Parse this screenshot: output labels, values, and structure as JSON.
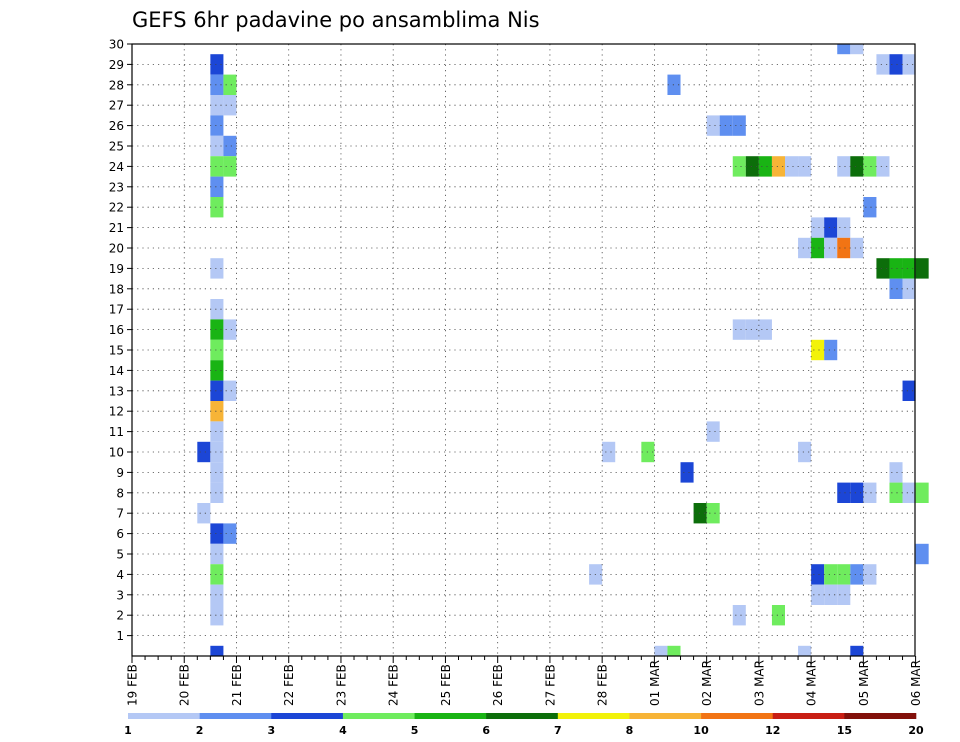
{
  "chart_data": {
    "type": "heatmap",
    "title": "GEFS 6hr padavine po ansamblima Nis",
    "xlabel": "",
    "ylabel": "",
    "x_tick_labels": [
      "19 FEB",
      "20 FEB",
      "21 FEB",
      "22 FEB",
      "23 FEB",
      "24 FEB",
      "25 FEB",
      "26 FEB",
      "27 FEB",
      "28 FEB",
      "01 MAR",
      "02 MAR",
      "03 MAR",
      "04 MAR",
      "05 MAR",
      "06 MAR"
    ],
    "y_tick_labels": [
      "1",
      "2",
      "3",
      "4",
      "5",
      "6",
      "7",
      "8",
      "9",
      "10",
      "11",
      "12",
      "13",
      "14",
      "15",
      "16",
      "17",
      "18",
      "19",
      "20",
      "21",
      "22",
      "23",
      "24",
      "25",
      "26",
      "27",
      "28",
      "29",
      "30"
    ],
    "ylim": [
      0,
      30
    ],
    "x_step": "6 hours",
    "grid": true,
    "colorbar": {
      "levels": [
        "1",
        "2",
        "3",
        "4",
        "5",
        "6",
        "7",
        "8",
        "10",
        "12",
        "15",
        "20"
      ],
      "colors": [
        "#b4c8f5",
        "#5f8ff0",
        "#1c46d6",
        "#6fec5e",
        "#19b414",
        "#0c6e0a",
        "#f2f20a",
        "#f7b437",
        "#f27414",
        "#c81e14",
        "#82100a"
      ]
    },
    "cells": [
      {
        "t": 6,
        "m": 29,
        "c": 3
      },
      {
        "t": 6,
        "m": 28,
        "c": 2
      },
      {
        "t": 7,
        "m": 28,
        "c": 4
      },
      {
        "t": 6,
        "m": 27,
        "c": 1
      },
      {
        "t": 7,
        "m": 27,
        "c": 1
      },
      {
        "t": 6,
        "m": 26,
        "c": 2
      },
      {
        "t": 6,
        "m": 25,
        "c": 1
      },
      {
        "t": 7,
        "m": 25,
        "c": 2
      },
      {
        "t": 6,
        "m": 24,
        "c": 4
      },
      {
        "t": 7,
        "m": 24,
        "c": 4
      },
      {
        "t": 6,
        "m": 23,
        "c": 2
      },
      {
        "t": 6,
        "m": 22,
        "c": 4
      },
      {
        "t": 6,
        "m": 19,
        "c": 1
      },
      {
        "t": 6,
        "m": 17,
        "c": 1
      },
      {
        "t": 6,
        "m": 16,
        "c": 5
      },
      {
        "t": 7,
        "m": 16,
        "c": 1
      },
      {
        "t": 6,
        "m": 15,
        "c": 4
      },
      {
        "t": 6,
        "m": 14,
        "c": 5
      },
      {
        "t": 6,
        "m": 13,
        "c": 3
      },
      {
        "t": 7,
        "m": 13,
        "c": 1
      },
      {
        "t": 6,
        "m": 12,
        "c": 8
      },
      {
        "t": 6,
        "m": 11,
        "c": 1
      },
      {
        "t": 5,
        "m": 10,
        "c": 3
      },
      {
        "t": 6,
        "m": 10,
        "c": 1
      },
      {
        "t": 6,
        "m": 9,
        "c": 1
      },
      {
        "t": 6,
        "m": 8,
        "c": 1
      },
      {
        "t": 5,
        "m": 7,
        "c": 1
      },
      {
        "t": 6,
        "m": 6,
        "c": 3
      },
      {
        "t": 7,
        "m": 6,
        "c": 2
      },
      {
        "t": 6,
        "m": 5,
        "c": 1
      },
      {
        "t": 6,
        "m": 4,
        "c": 4
      },
      {
        "t": 6,
        "m": 3,
        "c": 1
      },
      {
        "t": 6,
        "m": 2,
        "c": 1
      },
      {
        "t": 6,
        "m": 0,
        "c": 3
      },
      {
        "t": 36,
        "m": 10,
        "c": 1
      },
      {
        "t": 35,
        "m": 4,
        "c": 1
      },
      {
        "t": 39,
        "m": 10,
        "c": 4
      },
      {
        "t": 40,
        "m": 0,
        "c": 1
      },
      {
        "t": 41,
        "m": 0,
        "c": 4
      },
      {
        "t": 41,
        "m": 28,
        "c": 2
      },
      {
        "t": 42,
        "m": 9,
        "c": 3
      },
      {
        "t": 43,
        "m": 7,
        "c": 6
      },
      {
        "t": 44,
        "m": 7,
        "c": 4
      },
      {
        "t": 44,
        "m": 26,
        "c": 1
      },
      {
        "t": 45,
        "m": 26,
        "c": 2
      },
      {
        "t": 46,
        "m": 26,
        "c": 2
      },
      {
        "t": 44,
        "m": 11,
        "c": 1
      },
      {
        "t": 46,
        "m": 24,
        "c": 4
      },
      {
        "t": 47,
        "m": 24,
        "c": 6
      },
      {
        "t": 48,
        "m": 24,
        "c": 5
      },
      {
        "t": 49,
        "m": 24,
        "c": 8
      },
      {
        "t": 50,
        "m": 24,
        "c": 1
      },
      {
        "t": 51,
        "m": 24,
        "c": 1
      },
      {
        "t": 46,
        "m": 16,
        "c": 1
      },
      {
        "t": 47,
        "m": 16,
        "c": 1
      },
      {
        "t": 48,
        "m": 16,
        "c": 1
      },
      {
        "t": 46,
        "m": 2,
        "c": 1
      },
      {
        "t": 49,
        "m": 2,
        "c": 4
      },
      {
        "t": 51,
        "m": 10,
        "c": 1
      },
      {
        "t": 51,
        "m": 20,
        "c": 1
      },
      {
        "t": 51,
        "m": 0,
        "c": 1
      },
      {
        "t": 52,
        "m": 21,
        "c": 1
      },
      {
        "t": 53,
        "m": 21,
        "c": 3
      },
      {
        "t": 54,
        "m": 21,
        "c": 1
      },
      {
        "t": 52,
        "m": 20,
        "c": 5
      },
      {
        "t": 53,
        "m": 20,
        "c": 1
      },
      {
        "t": 54,
        "m": 20,
        "c": 9
      },
      {
        "t": 55,
        "m": 20,
        "c": 1
      },
      {
        "t": 52,
        "m": 15,
        "c": 7
      },
      {
        "t": 53,
        "m": 15,
        "c": 2
      },
      {
        "t": 52,
        "m": 4,
        "c": 3
      },
      {
        "t": 53,
        "m": 4,
        "c": 4
      },
      {
        "t": 54,
        "m": 4,
        "c": 4
      },
      {
        "t": 55,
        "m": 4,
        "c": 2
      },
      {
        "t": 56,
        "m": 4,
        "c": 1
      },
      {
        "t": 52,
        "m": 3,
        "c": 1
      },
      {
        "t": 53,
        "m": 3,
        "c": 1
      },
      {
        "t": 54,
        "m": 3,
        "c": 1
      },
      {
        "t": 54,
        "m": 24,
        "c": 1
      },
      {
        "t": 55,
        "m": 24,
        "c": 6
      },
      {
        "t": 56,
        "m": 24,
        "c": 4
      },
      {
        "t": 57,
        "m": 24,
        "c": 1
      },
      {
        "t": 54,
        "m": 8,
        "c": 3
      },
      {
        "t": 55,
        "m": 8,
        "c": 3
      },
      {
        "t": 56,
        "m": 8,
        "c": 1
      },
      {
        "t": 54,
        "m": 30,
        "c": 2
      },
      {
        "t": 55,
        "m": 30,
        "c": 1
      },
      {
        "t": 55,
        "m": 0,
        "c": 3
      },
      {
        "t": 56,
        "m": 22,
        "c": 2
      },
      {
        "t": 57,
        "m": 29,
        "c": 1
      },
      {
        "t": 58,
        "m": 29,
        "c": 3
      },
      {
        "t": 59,
        "m": 29,
        "c": 1
      },
      {
        "t": 57,
        "m": 19,
        "c": 6
      },
      {
        "t": 58,
        "m": 19,
        "c": 5
      },
      {
        "t": 59,
        "m": 19,
        "c": 5
      },
      {
        "t": 60,
        "m": 19,
        "c": 6
      },
      {
        "t": 58,
        "m": 18,
        "c": 2
      },
      {
        "t": 59,
        "m": 18,
        "c": 1
      },
      {
        "t": 59,
        "m": 13,
        "c": 3
      },
      {
        "t": 58,
        "m": 9,
        "c": 1
      },
      {
        "t": 58,
        "m": 8,
        "c": 4
      },
      {
        "t": 59,
        "m": 8,
        "c": 1
      },
      {
        "t": 60,
        "m": 8,
        "c": 4
      },
      {
        "t": 60,
        "m": 5,
        "c": 2
      }
    ]
  }
}
